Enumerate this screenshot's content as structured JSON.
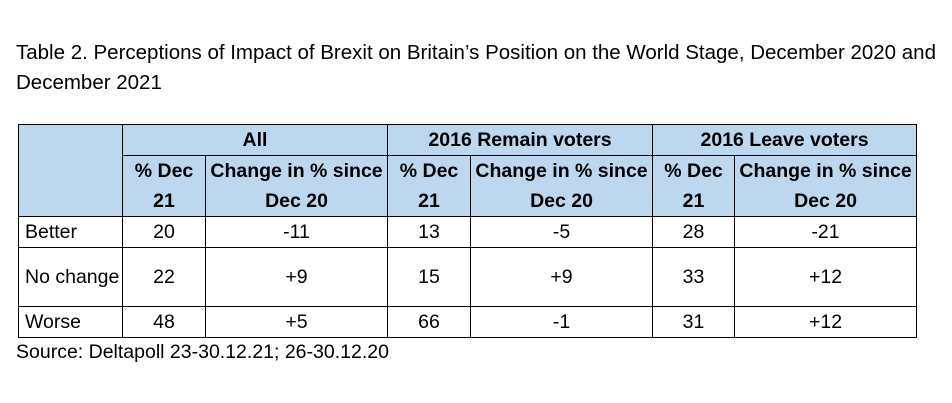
{
  "caption": "Table 2. Perceptions of Impact of Brexit on Britain’s Position on the World Stage, December 2020 and December 2021",
  "table": {
    "groups": [
      "All",
      "2016 Remain voters",
      "2016 Leave voters"
    ],
    "subheaders": {
      "pct": "% Dec 21",
      "change": "Change in % since Dec 20"
    },
    "rows": [
      {
        "label": "Better",
        "values": [
          "20",
          "-11",
          "13",
          "-5",
          "28",
          "-21"
        ]
      },
      {
        "label": "No change",
        "values": [
          "22",
          "+9",
          "15",
          "+9",
          "33",
          "+12"
        ]
      },
      {
        "label": "Worse",
        "values": [
          "48",
          "+5",
          "66",
          "-1",
          "31",
          "+12"
        ]
      }
    ]
  },
  "source": "Source: Deltapoll 23-30.12.21; 26-30.12.20",
  "colors": {
    "header_fill": "#bdd7ee",
    "border": "#000000"
  }
}
